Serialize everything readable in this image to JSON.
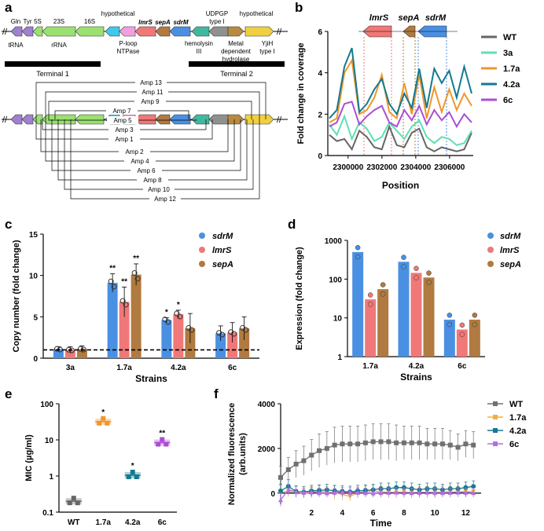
{
  "panel_labels": {
    "a": "a",
    "b": "b",
    "c": "c",
    "d": "d",
    "e": "e",
    "f": "f"
  },
  "colors": {
    "sdrM": "#4a90e2",
    "lmrS": "#f07878",
    "sepA": "#b07a40",
    "WT": "#666666",
    "s3a": "#5ee0b0",
    "s17a": "#f0962a",
    "s42a": "#137a8f",
    "s6c": "#a94fd4",
    "e_WT": "#666666",
    "e_17a": "#f0962a",
    "e_42a": "#137a8f",
    "e_6c": "#a94fd4",
    "f_WT": "#707070",
    "f_17a": "#f0b040",
    "f_42a": "#137a8f",
    "f_6c": "#b070e0"
  },
  "panel_a": {
    "genes_top": [
      "Gln",
      "Tyr",
      "5S",
      "23S",
      "16S",
      "hypothetical",
      "lmrS",
      "sepA",
      "sdrM",
      "UDPGP",
      "type I",
      "hypothetical"
    ],
    "genes_top2": [
      "tRNA",
      "rRNA",
      "P-loop",
      "NTPase",
      "hemolysin",
      "III",
      "Metal",
      "dependent",
      "hydrolase",
      "YjiH",
      "type I"
    ],
    "terminal1": "Terminal 1",
    "terminal2": "Terminal 2",
    "amplicons": [
      "Amp 13",
      "Amp 11",
      "Amp 9",
      "Amp 7",
      "Amp 5",
      "Amp 3",
      "Amp 1",
      "Amp 2",
      "Amp 4",
      "Amp 6",
      "Amp 8",
      "Amp 10",
      "Amp 12"
    ]
  },
  "chart_data": [
    {
      "panel": "b",
      "type": "line",
      "title": "",
      "xlabel": "Position",
      "ylabel": "Fold change in coverage",
      "xlim": [
        2298800,
        2307400
      ],
      "ylim": [
        0,
        6
      ],
      "xticks": [
        "2300000",
        "2302000",
        "2304000",
        "2306000"
      ],
      "yticks": [
        "0",
        "2",
        "4",
        "6"
      ],
      "gene_labels": [
        "lmrS",
        "sepA",
        "sdrM"
      ],
      "series": [
        {
          "name": "WT",
          "color_key": "WT",
          "values": [
            1.0,
            0.7,
            0.8,
            0.3,
            1.2,
            0.9,
            0.4,
            0.3,
            1.4,
            0.5,
            0.4,
            1.1,
            1.3,
            0.4,
            0.2,
            0.4,
            0.3,
            0.2,
            0.3,
            1.1
          ]
        },
        {
          "name": "3a",
          "color_key": "s3a",
          "values": [
            1.5,
            1.0,
            1.9,
            0.8,
            1.6,
            1.3,
            0.7,
            0.9,
            1.6,
            1.2,
            0.8,
            1.4,
            1.7,
            0.9,
            0.6,
            0.9,
            0.8,
            0.5,
            0.6,
            1.2
          ]
        },
        {
          "name": "1.7a",
          "color_key": "s17a",
          "values": [
            1.6,
            1.8,
            4.0,
            4.6,
            2.0,
            2.2,
            2.8,
            3.9,
            2.1,
            1.8,
            3.5,
            2.0,
            3.9,
            1.8,
            3.3,
            2.1,
            3.2,
            2.2,
            3.0,
            2.4
          ]
        },
        {
          "name": "4.2a",
          "color_key": "s42a",
          "values": [
            1.8,
            2.2,
            4.3,
            5.2,
            2.1,
            2.5,
            3.2,
            3.7,
            2.5,
            2.0,
            3.0,
            2.3,
            4.2,
            2.3,
            4.2,
            3.5,
            4.1,
            2.8,
            4.3,
            3.0
          ]
        },
        {
          "name": "6c",
          "color_key": "s6c",
          "values": [
            1.4,
            1.6,
            2.5,
            2.6,
            1.5,
            1.9,
            2.2,
            2.4,
            1.6,
            1.4,
            2.2,
            1.7,
            2.4,
            1.5,
            2.2,
            1.7,
            2.1,
            1.4,
            2.0,
            1.6
          ]
        }
      ]
    },
    {
      "panel": "c",
      "type": "bar",
      "xlabel": "Strains",
      "ylabel": "Copy number (fold change)",
      "ylim": [
        0,
        15
      ],
      "yticks": [
        "0",
        "5",
        "10",
        "15"
      ],
      "categories": [
        "3a",
        "1.7a",
        "4.2a",
        "6c"
      ],
      "series": [
        {
          "name": "sdrM",
          "color_key": "sdrM",
          "values": [
            1.1,
            9.1,
            4.6,
            3.0
          ],
          "err": [
            0.3,
            1.1,
            0.3,
            0.9
          ],
          "sig": [
            "",
            "**",
            "*",
            ""
          ]
        },
        {
          "name": "lmrS",
          "color_key": "lmrS",
          "values": [
            1.0,
            6.8,
            5.3,
            3.1
          ],
          "err": [
            0.4,
            1.8,
            0.5,
            1.2
          ],
          "sig": [
            "",
            "**",
            "*",
            ""
          ]
        },
        {
          "name": "sepA",
          "color_key": "sepA",
          "values": [
            1.1,
            10.1,
            3.6,
            3.6
          ],
          "err": [
            0.4,
            1.3,
            1.8,
            1.4
          ],
          "sig": [
            "",
            "**",
            "",
            ""
          ]
        }
      ],
      "baseline": 1
    },
    {
      "panel": "d",
      "type": "bar",
      "scale": "log",
      "xlabel": "Strains",
      "ylabel": "Expression (fold change)",
      "ylim": [
        1,
        1000
      ],
      "yticks": [
        "1",
        "10",
        "100",
        "1000"
      ],
      "categories": [
        "1.7a",
        "4.2a",
        "6c"
      ],
      "series": [
        {
          "name": "sdrM",
          "color_key": "sdrM",
          "values": [
            500,
            280,
            9
          ]
        },
        {
          "name": "lmrS",
          "color_key": "lmrS",
          "values": [
            30,
            145,
            5
          ]
        },
        {
          "name": "sepA",
          "color_key": "sepA",
          "values": [
            55,
            110,
            9
          ]
        }
      ]
    },
    {
      "panel": "e",
      "type": "scatter",
      "scale": "log",
      "ylabel": "MIC (µg/ml)",
      "ylim": [
        0.1,
        100
      ],
      "yticks": [
        "0.1",
        "1",
        "10",
        "100"
      ],
      "categories": [
        "WT",
        "1.7a",
        "4.2a",
        "6c"
      ],
      "values": [
        0.2,
        32,
        1.05,
        8.4
      ],
      "sig": [
        "",
        "*",
        "*",
        "**"
      ],
      "color_keys": [
        "e_WT",
        "e_17a",
        "e_42a",
        "e_6c"
      ]
    },
    {
      "panel": "f",
      "type": "line",
      "xlabel": "Time",
      "ylabel": "Normalized fluorescence (arb.units)",
      "xlim": [
        0,
        13
      ],
      "ylim": [
        -500,
        4000
      ],
      "xticks": [
        "2",
        "4",
        "6",
        "8",
        "10",
        "12"
      ],
      "yticks": [
        "0",
        "2000",
        "4000"
      ],
      "x": [
        0,
        0.5,
        1,
        1.5,
        2,
        2.5,
        3,
        3.5,
        4,
        4.5,
        5,
        5.5,
        6,
        6.5,
        7,
        7.5,
        8,
        8.5,
        9,
        9.5,
        10,
        10.5,
        11,
        11.5,
        12,
        12.5
      ],
      "series": [
        {
          "name": "WT",
          "color_key": "f_WT",
          "marker": "square",
          "values": [
            700,
            1050,
            1300,
            1450,
            1700,
            1900,
            2000,
            2150,
            2200,
            2200,
            2200,
            2250,
            2300,
            2300,
            2300,
            2250,
            2250,
            2250,
            2250,
            2200,
            2200,
            2200,
            2150,
            2050,
            2200,
            2150
          ],
          "err": [
            500,
            550,
            600,
            650,
            700,
            750,
            750,
            800,
            800,
            800,
            800,
            800,
            800,
            800,
            800,
            800,
            750,
            750,
            750,
            700,
            700,
            700,
            650,
            600,
            600,
            600
          ]
        },
        {
          "name": "1.7a",
          "color_key": "f_17a",
          "marker": "tri-down",
          "values": [
            50,
            80,
            60,
            -20,
            40,
            100,
            50,
            20,
            -60,
            -150,
            20,
            80,
            100,
            60,
            40,
            20,
            40,
            30,
            40,
            40,
            20,
            60,
            50,
            60,
            70,
            60
          ],
          "err": [
            300,
            250,
            250,
            200,
            250,
            250,
            250,
            300,
            250,
            200,
            250,
            250,
            250,
            250,
            250,
            250,
            250,
            250,
            250,
            250,
            250,
            250,
            250,
            250,
            250,
            250
          ]
        },
        {
          "name": "4.2a",
          "color_key": "f_42a",
          "marker": "hexagon",
          "values": [
            100,
            300,
            80,
            50,
            100,
            120,
            150,
            100,
            80,
            60,
            100,
            120,
            150,
            200,
            200,
            250,
            250,
            200,
            150,
            200,
            200,
            150,
            200,
            200,
            250,
            300
          ],
          "err": [
            300,
            300,
            250,
            250,
            250,
            250,
            250,
            250,
            250,
            250,
            250,
            250,
            250,
            250,
            250,
            250,
            250,
            250,
            250,
            250,
            250,
            250,
            250,
            250,
            250,
            250
          ]
        },
        {
          "name": "6c",
          "color_key": "f_6c",
          "marker": "tri-up",
          "values": [
            -300,
            150,
            60,
            30,
            50,
            20,
            10,
            30,
            50,
            40,
            30,
            20,
            10,
            20,
            30,
            40,
            30,
            20,
            30,
            40,
            30,
            20,
            30,
            40,
            30,
            20
          ],
          "err": [
            300,
            250,
            250,
            200,
            200,
            200,
            200,
            200,
            200,
            200,
            200,
            200,
            200,
            200,
            200,
            200,
            200,
            200,
            200,
            200,
            200,
            200,
            200,
            200,
            200,
            200
          ]
        }
      ]
    }
  ]
}
